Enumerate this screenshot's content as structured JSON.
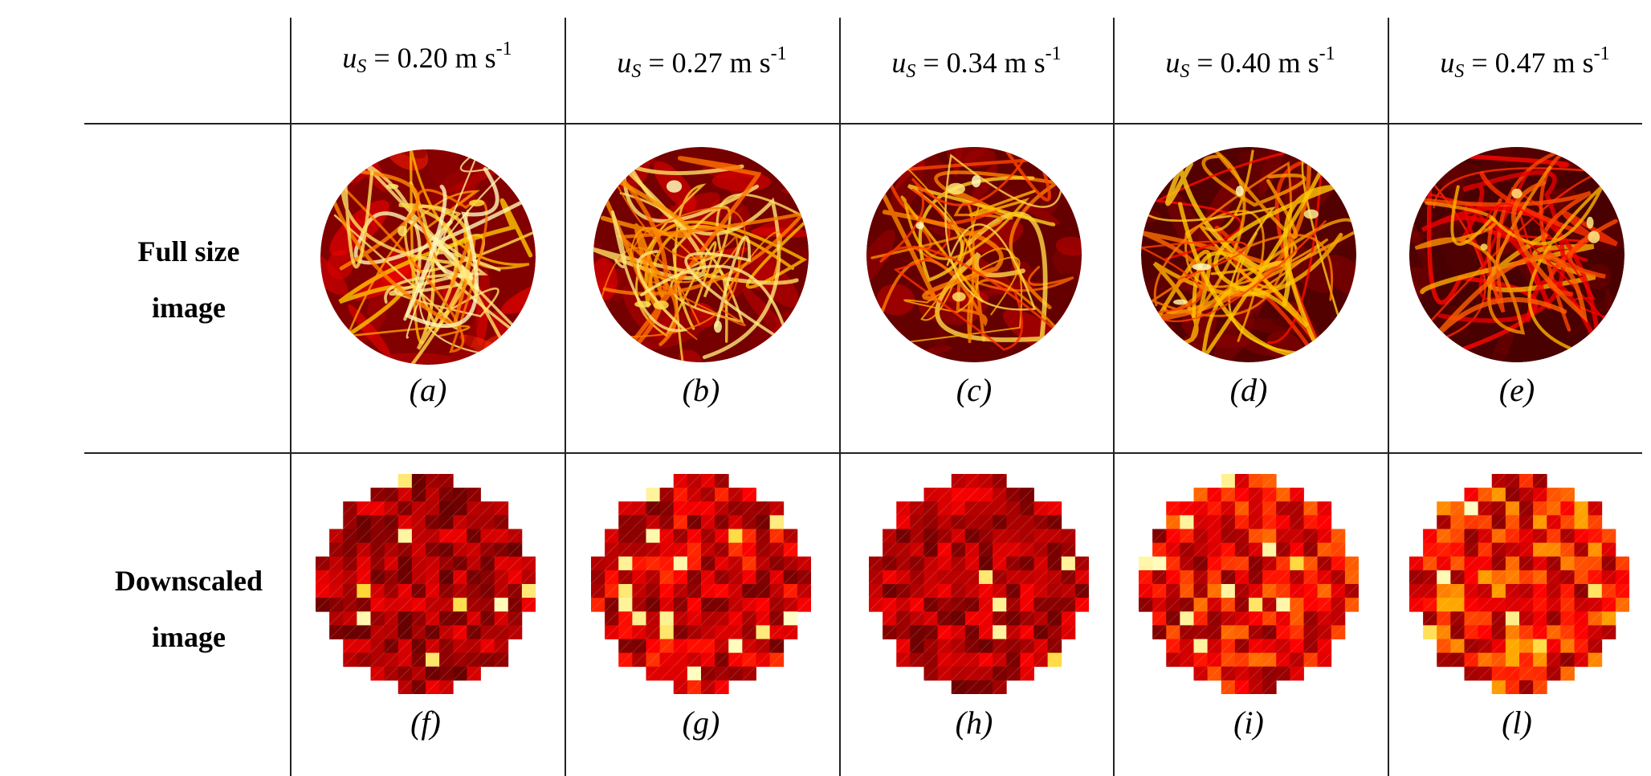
{
  "columns": [
    {
      "symbol": "u",
      "subscript": "S",
      "value": "= 0.20 m s",
      "exponent": "-1"
    },
    {
      "symbol": "u",
      "subscript": "S",
      "value": "= 0.27 m s",
      "exponent": "-1"
    },
    {
      "symbol": "u",
      "subscript": "S",
      "value": "= 0.34 m s",
      "exponent": "-1"
    },
    {
      "symbol": "u",
      "subscript": "S",
      "value": "= 0.40 m s",
      "exponent": "-1"
    },
    {
      "symbol": "u",
      "subscript": "S",
      "value": "= 0.47 m s",
      "exponent": "-1"
    }
  ],
  "rows": [
    {
      "label_line1": "Full size",
      "label_line2": "image"
    },
    {
      "label_line1": "Downscaled",
      "label_line2": "image"
    }
  ],
  "captions_full": [
    "(a)",
    "(b)",
    "(c)",
    "(d)",
    "(e)"
  ],
  "captions_down": [
    "(f)",
    "(g)",
    "(h)",
    "(i)",
    "(l)"
  ],
  "colors": {
    "rule": "#222222",
    "heat_dark": "#2a0000",
    "heat_mid": "#b00a00",
    "heat_bright": "#ff4000",
    "heat_hot": "#ffd000"
  }
}
